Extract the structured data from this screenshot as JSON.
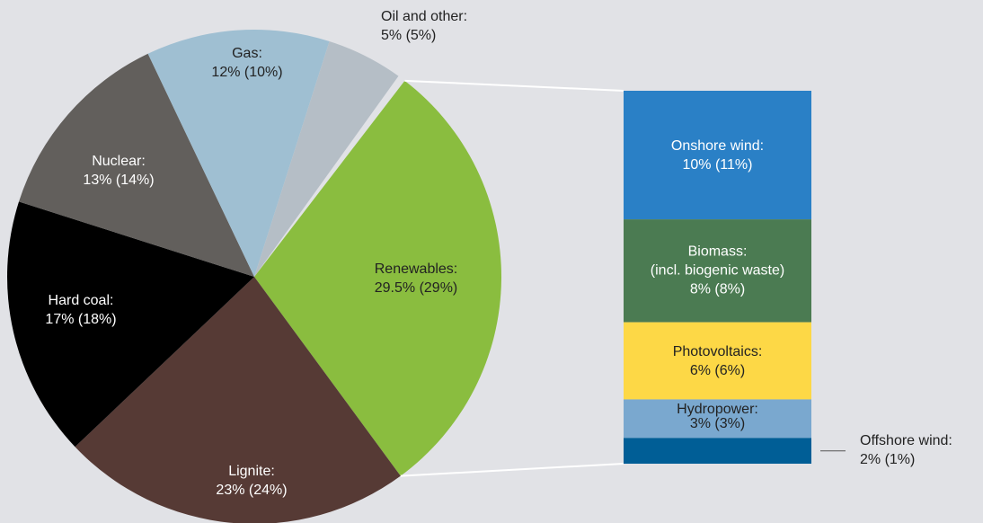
{
  "chart_data": [
    {
      "type": "pie",
      "categories": [
        "Renewables:",
        "Lignite:",
        "Hard coal:",
        "Nuclear:",
        "Gas:",
        "Oil and other:"
      ],
      "values": [
        29.5,
        23,
        17,
        13,
        12,
        5
      ],
      "value_labels": [
        "29.5% (29%)",
        "23% (24%)",
        "17% (18%)",
        "13% (14%)",
        "12% (10%)",
        "5% (5%)"
      ],
      "colors": [
        "#8abd3f",
        "#563a35",
        "#000000",
        "#625f5c",
        "#9fbfd2",
        "#b5bec6"
      ]
    },
    {
      "type": "stacked_bar",
      "categories": [
        "Onshore wind:",
        "Biomass:\n(incl. biogenic waste)",
        "Photovoltaics:",
        "Hydropower:",
        "Offshore wind:"
      ],
      "values": [
        10,
        8,
        6,
        3,
        2
      ],
      "value_labels": [
        "10% (11%)",
        "8% (8%)",
        "6% (6%)",
        "3% (3%)",
        "2% (1%)"
      ],
      "colors": [
        "#2a80c6",
        "#4b7b52",
        "#fdd846",
        "#7aa8cf",
        "#005e96"
      ]
    }
  ]
}
